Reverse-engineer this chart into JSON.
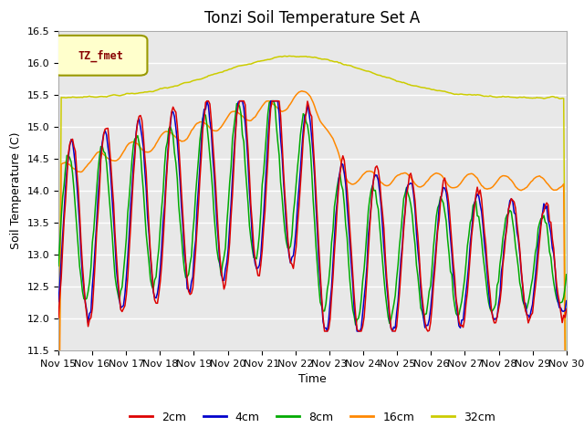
{
  "title": "Tonzi Soil Temperature Set A",
  "xlabel": "Time",
  "ylabel": "Soil Temperature (C)",
  "ylim": [
    11.5,
    16.5
  ],
  "xlim": [
    0,
    15
  ],
  "xtick_labels": [
    "Nov 15",
    "Nov 16",
    "Nov 17",
    "Nov 18",
    "Nov 19",
    "Nov 20",
    "Nov 21",
    "Nov 22",
    "Nov 23",
    "Nov 24",
    "Nov 25",
    "Nov 26",
    "Nov 27",
    "Nov 28",
    "Nov 29",
    "Nov 30"
  ],
  "colors": {
    "2cm": "#dd0000",
    "4cm": "#0000cc",
    "8cm": "#00aa00",
    "16cm": "#ff8800",
    "32cm": "#cccc00"
  },
  "legend_label": "TZ_fmet",
  "legend_bg": "#ffffcc",
  "legend_border": "#999900",
  "background_color": "#e8e8e8",
  "grid_color": "#ffffff",
  "title_fontsize": 12,
  "axis_fontsize": 9,
  "tick_fontsize": 8
}
